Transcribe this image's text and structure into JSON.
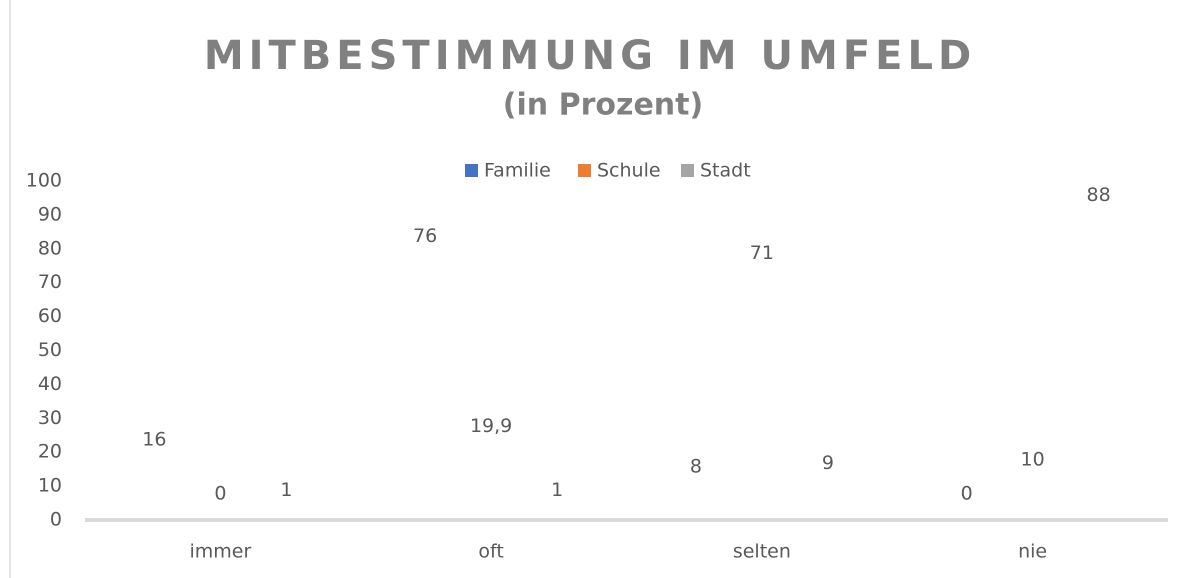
{
  "chart_data": {
    "type": "bar",
    "title": "MITBESTIMMUNG IM UMFELD",
    "subtitle": "(in Prozent)",
    "categories": [
      "immer",
      "oft",
      "selten",
      "nie"
    ],
    "series": [
      {
        "name": "Familie",
        "color": "#4472c4",
        "values": [
          16,
          76,
          8,
          0
        ]
      },
      {
        "name": "Schule",
        "color": "#ed7d31",
        "values": [
          0,
          19.9,
          71,
          10
        ],
        "value_labels": [
          "0",
          "19,9",
          "71",
          "10"
        ]
      },
      {
        "name": "Stadt",
        "color": "#a5a5a5",
        "values": [
          1,
          1,
          9,
          88
        ]
      }
    ],
    "ylim": [
      0,
      100
    ],
    "yticks": [
      0,
      10,
      20,
      30,
      40,
      50,
      60,
      70,
      80,
      90,
      100
    ],
    "legend": "top",
    "grid": false
  }
}
